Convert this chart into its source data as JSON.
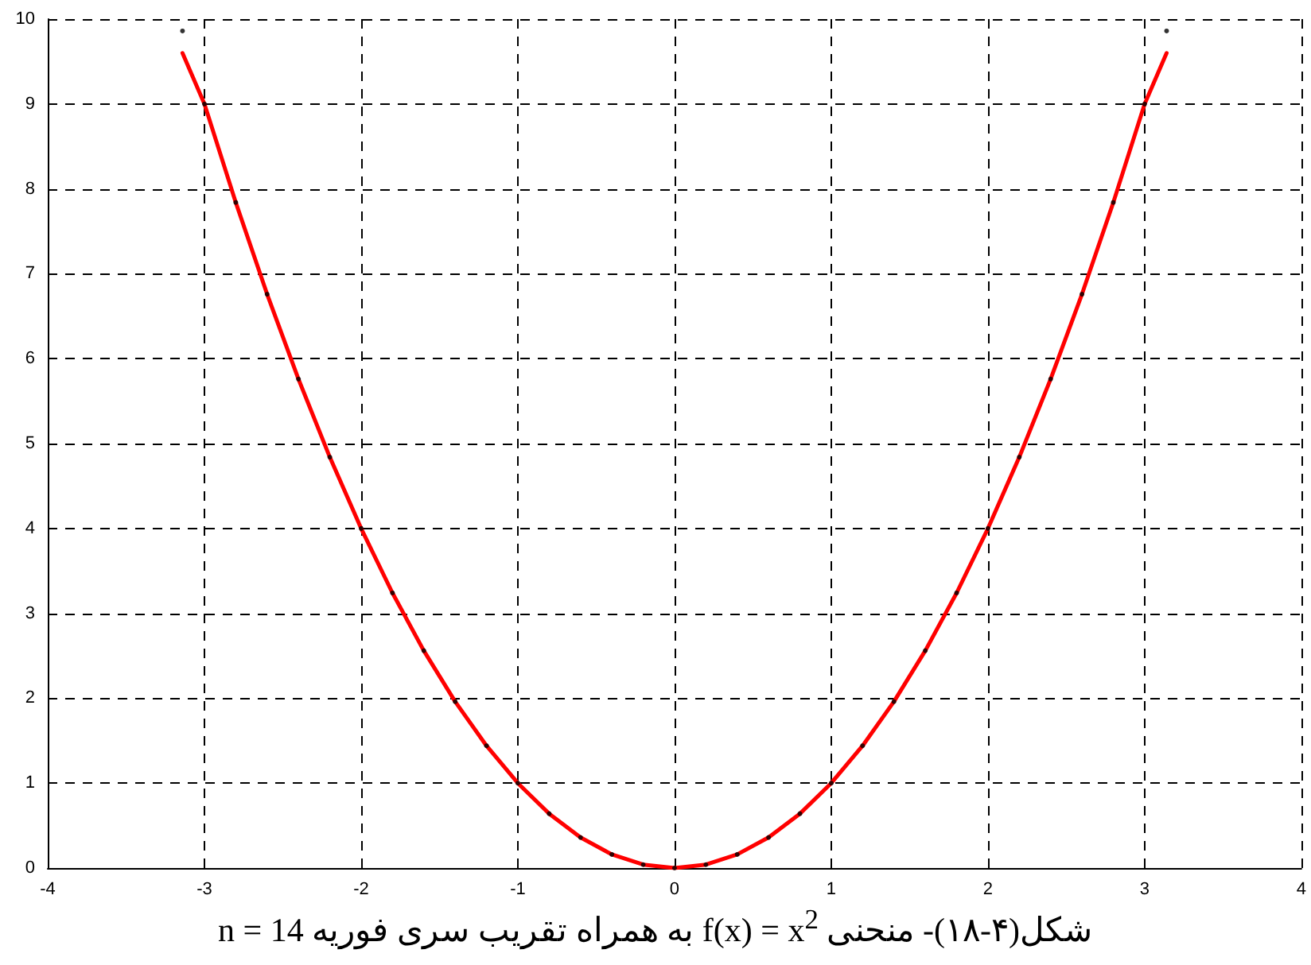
{
  "chart_data": {
    "type": "line",
    "xlabel": "شکل(۴-۱۸)- منحنی f(x) = x$^{2}$ به همراه تقریب سری فوریه n = 14",
    "x": [
      -3.14,
      -3.0,
      -2.8,
      -2.6,
      -2.4,
      -2.2,
      -2.0,
      -1.8,
      -1.6,
      -1.4,
      -1.2,
      -1.0,
      -0.8,
      -0.6,
      -0.4,
      -0.2,
      0,
      0.2,
      0.4,
      0.6,
      0.8,
      1.0,
      1.2,
      1.4,
      1.6,
      1.8,
      2.0,
      2.2,
      2.4,
      2.6,
      2.8,
      3.0,
      3.14
    ],
    "series": [
      {
        "type": "scatter",
        "marker": "circle",
        "color": "#000000",
        "values": [
          9.86,
          9.0,
          7.84,
          6.76,
          5.76,
          4.84,
          4.0,
          3.24,
          2.56,
          1.96,
          1.44,
          1.0,
          0.64,
          0.36,
          0.16,
          0.04,
          0,
          0.04,
          0.16,
          0.36,
          0.64,
          1.0,
          1.44,
          1.96,
          2.56,
          3.24,
          4.0,
          4.84,
          5.76,
          6.76,
          7.84,
          9.0,
          9.86
        ]
      },
      {
        "marker": "none",
        "line_style": "solid",
        "color": "#ff0000",
        "values": [
          9.6,
          9.0,
          7.84,
          6.76,
          5.76,
          4.84,
          4.0,
          3.24,
          2.56,
          1.96,
          1.44,
          1.0,
          0.64,
          0.36,
          0.16,
          0.04,
          0,
          0.04,
          0.16,
          0.36,
          0.64,
          1.0,
          1.44,
          1.96,
          2.56,
          3.24,
          4.0,
          4.84,
          5.76,
          6.76,
          7.84,
          9.0,
          9.6
        ]
      }
    ],
    "xlim": [
      -4,
      4
    ],
    "xticks": [
      -4,
      -3,
      -2,
      -1,
      0,
      1,
      2,
      3,
      4
    ],
    "ylim": [
      0,
      10
    ],
    "yticks": [
      0,
      1,
      2,
      3,
      4,
      5,
      6,
      7,
      8,
      9,
      10
    ],
    "grid": true
  }
}
